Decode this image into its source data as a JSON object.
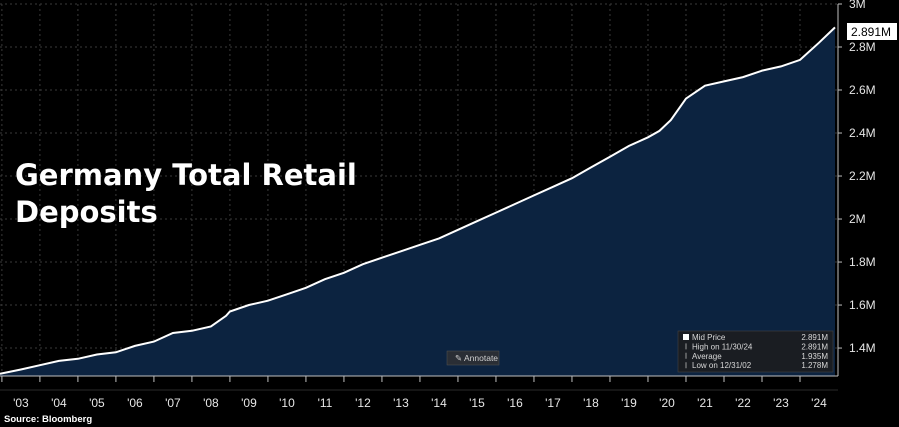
{
  "chart_data": {
    "type": "area",
    "title": "Germany Total Retail Deposits",
    "x_ticks": [
      "'03",
      "'04",
      "'05",
      "'06",
      "'07",
      "'08",
      "'09",
      "'10",
      "'11",
      "'12",
      "'13",
      "'14",
      "'15",
      "'16",
      "'17",
      "'18",
      "'19",
      "'20",
      "'21",
      "'22",
      "'23",
      "'24"
    ],
    "y_ticks": [
      "3M",
      "2.8M",
      "2.6M",
      "2.4M",
      "2.2M",
      "2M",
      "1.8M",
      "1.6M",
      "1.4M"
    ],
    "ylim": [
      1.27,
      3.0
    ],
    "xlim": [
      2002.95,
      2025.0
    ],
    "grid": true,
    "line_color": "#ffffff",
    "fill_color": "#0c2340",
    "series": [
      {
        "name": "Mid Price",
        "x": [
          2002.95,
          2003.5,
          2004.0,
          2004.5,
          2005.0,
          2005.5,
          2006.0,
          2006.5,
          2007.0,
          2007.5,
          2008.0,
          2008.5,
          2008.9,
          2009.0,
          2009.5,
          2010.0,
          2010.5,
          2011.0,
          2011.5,
          2012.0,
          2012.5,
          2013.0,
          2013.5,
          2014.0,
          2014.5,
          2015.0,
          2015.5,
          2016.0,
          2016.5,
          2017.0,
          2017.5,
          2018.0,
          2018.5,
          2019.0,
          2019.5,
          2020.0,
          2020.3,
          2020.6,
          2021.0,
          2021.5,
          2022.0,
          2022.5,
          2023.0,
          2023.5,
          2024.0,
          2024.5,
          2024.92
        ],
        "y": [
          1.28,
          1.3,
          1.32,
          1.34,
          1.35,
          1.37,
          1.38,
          1.41,
          1.43,
          1.47,
          1.48,
          1.5,
          1.55,
          1.57,
          1.6,
          1.62,
          1.65,
          1.68,
          1.72,
          1.75,
          1.79,
          1.82,
          1.85,
          1.88,
          1.91,
          1.95,
          1.99,
          2.03,
          2.07,
          2.11,
          2.15,
          2.19,
          2.24,
          2.29,
          2.34,
          2.38,
          2.41,
          2.46,
          2.56,
          2.62,
          2.64,
          2.66,
          2.69,
          2.71,
          2.74,
          2.82,
          2.891
        ]
      }
    ],
    "last_value_label": "2.891M",
    "legend": {
      "placement": "bottom-right",
      "rows": [
        {
          "label": "Mid Price",
          "value": "2.891M"
        },
        {
          "label": "High on 11/30/24",
          "value": "2.891M"
        },
        {
          "label": "Average",
          "value": "1.935M"
        },
        {
          "label": "Low on 12/31/02",
          "value": "1.278M"
        }
      ]
    },
    "annotate_label": "Annotate",
    "source": "Source: Bloomberg"
  }
}
